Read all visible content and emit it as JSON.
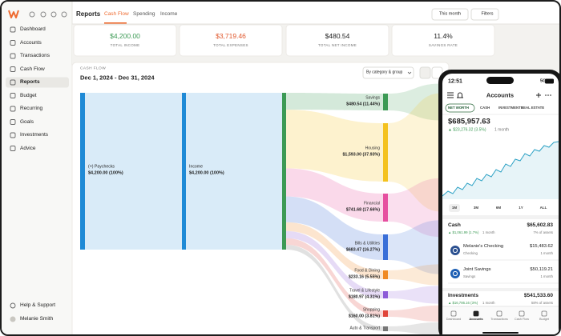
{
  "sidebar": {
    "items": [
      "Dashboard",
      "Accounts",
      "Transactions",
      "Cash Flow",
      "Reports",
      "Budget",
      "Recurring",
      "Goals",
      "Investments",
      "Advice"
    ],
    "help": "Help & Support",
    "user": "Melanie Smith"
  },
  "topbar": {
    "title": "Reports",
    "tabs": [
      "Cash Flow",
      "Spending",
      "Income"
    ],
    "period": "This month",
    "filters": "Filters"
  },
  "summary": [
    {
      "value": "$4,200.00",
      "label": "TOTAL INCOME"
    },
    {
      "value": "$3,719.46",
      "label": "TOTAL EXPENSES"
    },
    {
      "value": "$480.54",
      "label": "TOTAL NET INCOME"
    },
    {
      "value": "11.4%",
      "label": "SAVINGS RATE"
    }
  ],
  "cash_flow": {
    "label": "CASH FLOW",
    "range": "Dec 1, 2024 - Dec 31, 2024",
    "grouping": "By category & group",
    "sources": [
      {
        "name": "(+) Paychecks",
        "amount": "$4,200.00 (100%)"
      },
      {
        "name": "Income",
        "amount": "$4,200.00 (100%)"
      }
    ],
    "categories": [
      {
        "name": "Savings",
        "amount": "$480.54 (11.44%)"
      },
      {
        "name": "Housing",
        "amount": "$1,593.00 (37.93%)"
      },
      {
        "name": "Financial",
        "amount": "$741.68 (17.66%)"
      },
      {
        "name": "Bills & Utilities",
        "amount": "$683.47 (16.27%)"
      },
      {
        "name": "Food & Dining",
        "amount": "$233.16 (5.55%)"
      },
      {
        "name": "Travel & Lifestyle",
        "amount": "$180.97 (4.31%)"
      },
      {
        "name": "Shopping",
        "amount": "$160.00 (3.81%)"
      },
      {
        "name": "Auto & Transport"
      }
    ]
  },
  "phone": {
    "time": "12:51",
    "signal": "5G",
    "title": "Accounts",
    "tabs": [
      "NET WORTH",
      "CASH",
      "INVESTMENTS",
      "REAL ESTATE"
    ],
    "net_worth": "$685,957.63",
    "change": "▲ $23,276.32 (3.5%)",
    "change_period": "1 month",
    "ranges": [
      "1M",
      "3M",
      "6M",
      "1Y",
      "ALL"
    ],
    "groups": [
      {
        "name": "Cash",
        "total": "$65,602.83",
        "change": "▲ $1,061.99 (1.7%)",
        "period": "1 month",
        "share": "7% of assets",
        "accounts": [
          {
            "name": "Melanie's Checking",
            "type": "Checking",
            "balance": "$15,483.62",
            "period": "1 month"
          },
          {
            "name": "Joint Savings",
            "type": "Savings",
            "balance": "$50,119.21",
            "period": "1 month"
          }
        ]
      },
      {
        "name": "Investments",
        "total": "$541,533.60",
        "change": "▲ $16,786.16 (3%)",
        "period": "1 month",
        "share": "58% of assets",
        "accounts": []
      }
    ],
    "nav": [
      "Dashboard",
      "Accounts",
      "Transactions",
      "Cash Flow",
      "Budget"
    ]
  }
}
